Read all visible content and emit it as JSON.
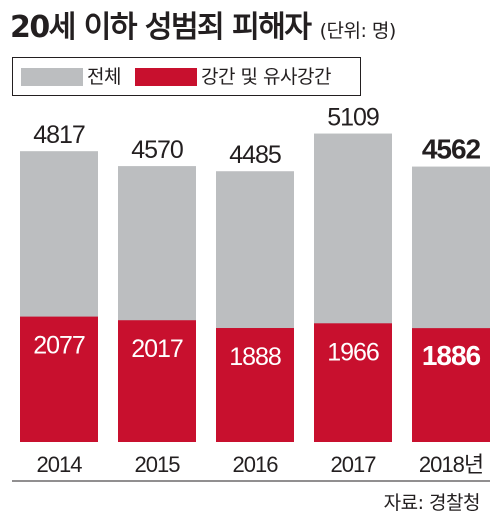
{
  "header": {
    "title": "20세 이하 성범죄 피해자",
    "unit": "(단위: 명)"
  },
  "legend": {
    "items": [
      {
        "label": "전체",
        "color": "#bcbec0"
      },
      {
        "label": "강간 및 유사강간",
        "color": "#c8102e"
      }
    ]
  },
  "source": "자료: 경찰청",
  "chart_data": {
    "type": "bar",
    "stacking": "overlay",
    "categories": [
      "2014",
      "2015",
      "2016",
      "2017",
      "2018년"
    ],
    "series": [
      {
        "name": "전체",
        "values": [
          4817,
          4570,
          4485,
          5109,
          4562
        ],
        "color": "#bcbec0"
      },
      {
        "name": "강간 및 유사강간",
        "values": [
          2077,
          2017,
          1888,
          1966,
          1886
        ],
        "color": "#c8102e"
      }
    ],
    "ylim": [
      0,
      5350
    ],
    "grid": false,
    "legend_position": "top-left",
    "highlight_category": "2018년"
  }
}
